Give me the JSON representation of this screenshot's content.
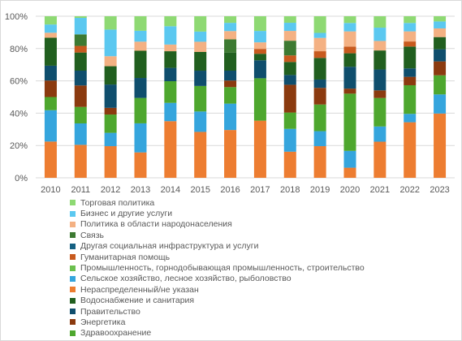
{
  "chart_data": {
    "type": "bar",
    "stacked": "percent",
    "categories": [
      "2010",
      "2011",
      "2012",
      "2013",
      "2014",
      "2015",
      "2016",
      "2017",
      "2018",
      "2019",
      "2020",
      "2021",
      "2022",
      "2023"
    ],
    "y_ticks": [
      "0%",
      "20%",
      "40%",
      "60%",
      "80%",
      "100%"
    ],
    "ylim": [
      0,
      100
    ],
    "grid": true,
    "legend_position": "bottom",
    "series": [
      {
        "name": "Нераспределенный/не указан",
        "color": "#ED7D31",
        "values": [
          22,
          20,
          19,
          14,
          34,
          27,
          29,
          35,
          16,
          19,
          6,
          19,
          33,
          37
        ]
      },
      {
        "name": "Сельское хозяйство, лесное хозяйство, рыболовство",
        "color": "#35A5DD",
        "values": [
          19,
          13,
          8,
          16,
          11,
          12,
          16,
          0,
          14,
          9,
          10,
          8,
          5,
          11
        ]
      },
      {
        "name": "Промышленность, горнодобывающая промышленность, строительство",
        "color": "#6BBF4E",
        "values": [
          0,
          0,
          0,
          0,
          0,
          0,
          0,
          0,
          0,
          0,
          0,
          0,
          0,
          0
        ]
      },
      {
        "name": "Здравоохранение",
        "color": "#4EA72E",
        "values": [
          8,
          10,
          11,
          14,
          13,
          15,
          10,
          26,
          10,
          16,
          34,
          15,
          17,
          11
        ]
      },
      {
        "name": "Энергетика",
        "color": "#8B3A0F",
        "values": [
          10,
          13,
          4,
          0,
          0,
          0,
          4,
          0,
          17,
          10,
          3,
          4,
          5,
          8
        ]
      },
      {
        "name": "Правительство",
        "color": "#0F4E6D",
        "values": [
          9,
          9,
          14,
          11,
          8,
          9,
          6,
          11,
          6,
          5,
          13,
          11,
          5,
          7
        ]
      },
      {
        "name": "Водоснабжение и санитария",
        "color": "#215F1F",
        "values": [
          17,
          11,
          11,
          15,
          10,
          11,
          11,
          4,
          8,
          13,
          8,
          10,
          13,
          7
        ]
      },
      {
        "name": "Гуманитарная помощь",
        "color": "#C85A1E",
        "values": [
          0,
          4,
          0,
          0,
          0,
          0,
          0,
          3,
          4,
          4,
          4,
          0,
          3,
          0
        ]
      },
      {
        "name": "Другая социальная инфраструктура и услуги",
        "color": "#156082",
        "values": [
          0,
          0,
          0,
          0,
          0,
          0,
          0,
          0,
          0,
          0,
          0,
          0,
          0,
          0
        ]
      },
      {
        "name": "Связь",
        "color": "#3D7A32",
        "values": [
          0,
          7,
          0,
          0,
          0,
          0,
          8,
          0,
          9,
          0,
          0,
          0,
          0,
          0
        ]
      },
      {
        "name": "Политика в области народонаселения",
        "color": "#F4B183",
        "values": [
          3,
          0,
          6,
          5,
          4,
          6,
          5,
          4,
          6,
          8,
          9,
          5,
          6,
          5
        ]
      },
      {
        "name": "Бизнес и другие услуги",
        "color": "#5BC8F0",
        "values": [
          5,
          10,
          16,
          6,
          11,
          6,
          5,
          7,
          5,
          3,
          5,
          7,
          5,
          4
        ]
      },
      {
        "name": "Торговая политика",
        "color": "#8ED973",
        "values": [
          5,
          1,
          8,
          8,
          6,
          9,
          4,
          9,
          4,
          10,
          4,
          6,
          4,
          3
        ]
      }
    ],
    "legend_order": [
      "Торговая политика",
      "Бизнес и другие услуги",
      "Политика в области народонаселения",
      "Связь",
      "Другая социальная инфраструктура и услуги",
      "Гуманитарная помощь",
      "Промышленность, горнодобывающая промышленность, строительство",
      "Сельское хозяйство, лесное хозяйство, рыболовство",
      "Нераспределенный/не указан",
      "Водоснабжение и санитария",
      "Правительство",
      "Энергетика",
      "Здравоохранение"
    ],
    "legend_colors": {
      "Торговая политика": "#8ED973",
      "Бизнес и другие услуги": "#5BC8F0",
      "Политика в области народонаселения": "#F4B183",
      "Связь": "#3D7A32",
      "Другая социальная инфраструктура и услуги": "#156082",
      "Гуманитарная помощь": "#C85A1E",
      "Промышленность, горнодобывающая промышленность, строительство": "#6BBF4E",
      "Сельское хозяйство, лесное хозяйство, рыболовство": "#35A5DD",
      "Нераспределенный/не указан": "#ED7D31",
      "Водоснабжение и санитария": "#215F1F",
      "Правительство": "#0F4E6D",
      "Энергетика": "#8B3A0F",
      "Здравоохранение": "#4EA72E"
    }
  }
}
